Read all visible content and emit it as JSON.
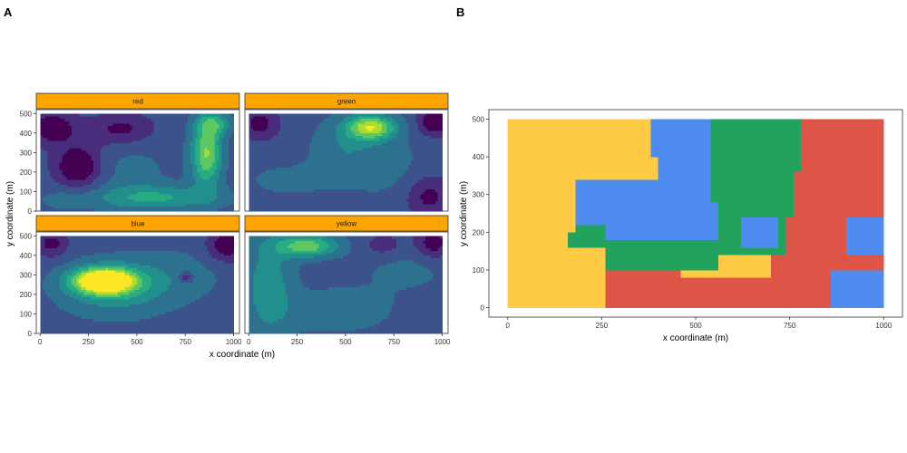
{
  "panels": {
    "A": {
      "label": "A"
    },
    "B": {
      "label": "B"
    }
  },
  "colors": {
    "strip": "#FFA500",
    "viridis": [
      "#440154",
      "#472D7B",
      "#3B528B",
      "#2C728E",
      "#21908C",
      "#27AD81",
      "#5DC863",
      "#AADC32",
      "#FDE725"
    ],
    "classes": {
      "yellow": "#FFCB44",
      "blue": "#4F8CF0",
      "green": "#21A35D",
      "red": "#DE5446"
    }
  },
  "chart_data": [
    {
      "type": "heatmap",
      "subtype": "faceted filled contour",
      "panel": "A",
      "xlabel": "x coordinate (m)",
      "ylabel": "y coordinate (m)",
      "xlim": [
        -20,
        1030
      ],
      "ylim": [
        0,
        520
      ],
      "xticks": [
        0,
        250,
        500,
        750,
        1000
      ],
      "yticks": [
        0,
        100,
        200,
        300,
        400,
        500
      ],
      "facets": [
        {
          "name": "red",
          "hotspots": [
            {
              "x": 860,
              "y": 300,
              "sx": 55,
              "sy": 120,
              "amp": 0.55
            },
            {
              "x": 900,
              "y": 450,
              "sx": 60,
              "sy": 40,
              "amp": 0.3
            },
            {
              "x": 600,
              "y": 70,
              "sx": 230,
              "sy": 45,
              "amp": 0.3
            },
            {
              "x": 120,
              "y": 60,
              "sx": 90,
              "sy": 40,
              "amp": 0.1
            },
            {
              "x": 450,
              "y": 200,
              "sx": 160,
              "sy": 120,
              "amp": 0.1
            }
          ],
          "coldspots": [
            {
              "x": 60,
              "y": 430,
              "sx": 90,
              "sy": 60,
              "amp": 0.25
            },
            {
              "x": 200,
              "y": 230,
              "sx": 90,
              "sy": 80,
              "amp": 0.3
            },
            {
              "x": 420,
              "y": 420,
              "sx": 120,
              "sy": 60,
              "amp": 0.2
            }
          ]
        },
        {
          "name": "green",
          "hotspots": [
            {
              "x": 630,
              "y": 430,
              "sx": 90,
              "sy": 45,
              "amp": 0.62
            },
            {
              "x": 480,
              "y": 320,
              "sx": 120,
              "sy": 110,
              "amp": 0.15
            },
            {
              "x": 200,
              "y": 160,
              "sx": 160,
              "sy": 60,
              "amp": 0.1
            },
            {
              "x": 720,
              "y": 230,
              "sx": 150,
              "sy": 120,
              "amp": 0.1
            }
          ],
          "coldspots": [
            {
              "x": 960,
              "y": 460,
              "sx": 60,
              "sy": 50,
              "amp": 0.3
            },
            {
              "x": 60,
              "y": 450,
              "sx": 70,
              "sy": 60,
              "amp": 0.2
            },
            {
              "x": 930,
              "y": 80,
              "sx": 90,
              "sy": 80,
              "amp": 0.2
            }
          ]
        },
        {
          "name": "blue",
          "hotspots": [
            {
              "x": 330,
              "y": 270,
              "sx": 110,
              "sy": 45,
              "amp": 0.95
            },
            {
              "x": 380,
              "y": 230,
              "sx": 200,
              "sy": 100,
              "amp": 0.25
            },
            {
              "x": 700,
              "y": 300,
              "sx": 200,
              "sy": 100,
              "amp": 0.1
            }
          ],
          "coldspots": [
            {
              "x": 960,
              "y": 450,
              "sx": 70,
              "sy": 60,
              "amp": 0.25
            },
            {
              "x": 750,
              "y": 290,
              "sx": 25,
              "sy": 20,
              "amp": 0.25
            },
            {
              "x": 60,
              "y": 460,
              "sx": 60,
              "sy": 50,
              "amp": 0.2
            }
          ]
        },
        {
          "name": "yellow",
          "hotspots": [
            {
              "x": 300,
              "y": 450,
              "sx": 110,
              "sy": 40,
              "amp": 0.5
            },
            {
              "x": 100,
              "y": 250,
              "sx": 90,
              "sy": 200,
              "amp": 0.25
            },
            {
              "x": 450,
              "y": 120,
              "sx": 200,
              "sy": 80,
              "amp": 0.15
            },
            {
              "x": 820,
              "y": 350,
              "sx": 180,
              "sy": 100,
              "amp": 0.1
            }
          ],
          "coldspots": [
            {
              "x": 950,
              "y": 460,
              "sx": 70,
              "sy": 60,
              "amp": 0.25
            },
            {
              "x": 700,
              "y": 450,
              "sx": 80,
              "sy": 50,
              "amp": 0.15
            }
          ]
        }
      ]
    },
    {
      "type": "heatmap",
      "subtype": "categorical raster",
      "panel": "B",
      "xlabel": "x coordinate (m)",
      "ylabel": "y coordinate (m)",
      "xlim": [
        -50,
        1050
      ],
      "ylim": [
        -25,
        525
      ],
      "xticks": [
        0,
        250,
        500,
        750,
        1000
      ],
      "yticks": [
        0,
        100,
        200,
        300,
        400,
        500
      ],
      "categories": [
        "yellow",
        "blue",
        "green",
        "red"
      ]
    }
  ]
}
